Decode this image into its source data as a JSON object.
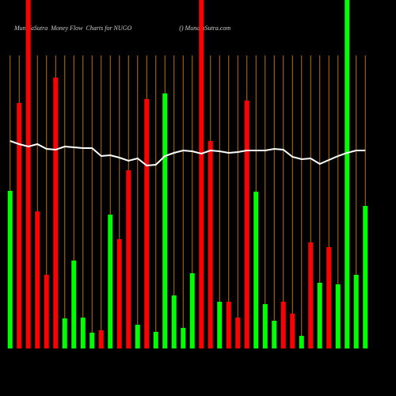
{
  "chart_data": {
    "type": "bar",
    "title": "MunafaSutra  Money Flow  Charts for NUGO                              () MunafaSutra.com",
    "categories": [
      null,
      null,
      null,
      null,
      null,
      null,
      null,
      null,
      null,
      null,
      null,
      null,
      null,
      null,
      null,
      null,
      null,
      null,
      null,
      null,
      null,
      null,
      null,
      null,
      null,
      null,
      null,
      null,
      null,
      null,
      null,
      null,
      null,
      null,
      null,
      null,
      null,
      null,
      null,
      null
    ],
    "values": [
      199,
      310,
      440,
      173,
      93,
      342,
      38,
      111,
      39,
      20,
      23,
      169,
      138,
      225,
      30,
      315,
      21,
      322,
      67,
      26,
      95,
      440,
      262,
      59,
      59,
      39,
      313,
      198,
      56,
      35,
      59,
      44,
      16,
      134,
      83,
      128,
      81,
      440,
      93,
      180
    ],
    "bar_colors": [
      "#00ff00",
      "#ff0000",
      "#ff0000",
      "#ff0000",
      "#ff0000",
      "#ff0000",
      "#00ff00",
      "#00ff00",
      "#00ff00",
      "#00ff00",
      "#ff0000",
      "#00ff00",
      "#ff0000",
      "#ff0000",
      "#00ff00",
      "#ff0000",
      "#00ff00",
      "#00ff00",
      "#00ff00",
      "#00ff00",
      "#00ff00",
      "#ff0000",
      "#ff0000",
      "#00ff00",
      "#ff0000",
      "#ff0000",
      "#ff0000",
      "#00ff00",
      "#00ff00",
      "#00ff00",
      "#ff0000",
      "#ff0000",
      "#00ff00",
      "#ff0000",
      "#00ff00",
      "#ff0000",
      "#00ff00",
      "#00ff00",
      "#00ff00",
      "#00ff00"
    ],
    "line": {
      "color": "#ffffff",
      "values": [
        262,
        258,
        255,
        258,
        252,
        251,
        255,
        254,
        253,
        253,
        243,
        244,
        241,
        237,
        240,
        231,
        232,
        243,
        247,
        250,
        249,
        246,
        250,
        249,
        247,
        248,
        250,
        250,
        250,
        252,
        251,
        242,
        239,
        240,
        233,
        238,
        243,
        247,
        250,
        250
      ]
    },
    "separator_color": "#b8730f",
    "ylim": [
      0,
      440
    ]
  }
}
